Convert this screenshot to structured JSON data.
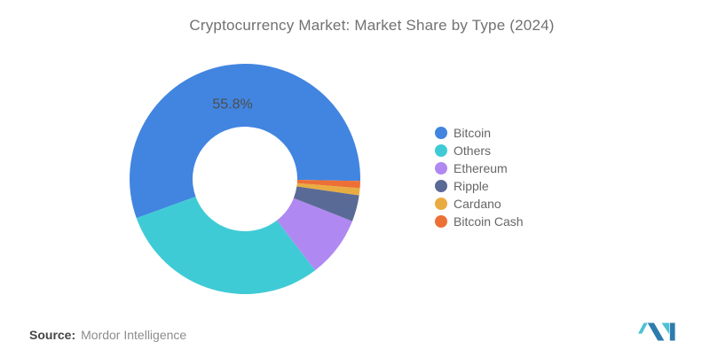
{
  "title": "Cryptocurrency Market: Market Share by Type (2024)",
  "source": {
    "label": "Source:",
    "value": "Mordor Intelligence"
  },
  "logo": {
    "name": "mordor-intelligence-logo",
    "blue": "#2e7bad",
    "teal": "#4cc2d3"
  },
  "text_colors": {
    "title": "#717171",
    "slice_label": "#4d4d4d",
    "legend_label": "#666666"
  },
  "chart_data": {
    "type": "pie",
    "subtype": "donut",
    "title": "Cryptocurrency Market: Market Share by Type (2024)",
    "unit": "%",
    "legend_position": "right",
    "start_angle_deg": 91,
    "direction": "counterclockwise",
    "inner_radius_ratio": 0.45,
    "series": [
      {
        "name": "Bitcoin",
        "value": 55.8,
        "label": "55.8%",
        "color": "#4285e0"
      },
      {
        "name": "Others",
        "value": 29.9,
        "label": "",
        "color": "#3fcbd6"
      },
      {
        "name": "Ethereum",
        "value": 8.6,
        "label": "",
        "color": "#b088f2"
      },
      {
        "name": "Ripple",
        "value": 3.7,
        "label": "",
        "color": "#5a6a96"
      },
      {
        "name": "Cardano",
        "value": 1.0,
        "label": "",
        "color": "#e9ac42"
      },
      {
        "name": "Bitcoin Cash",
        "value": 1.0,
        "label": "",
        "color": "#ec7036"
      }
    ],
    "annotations": [
      "55.8%"
    ]
  }
}
